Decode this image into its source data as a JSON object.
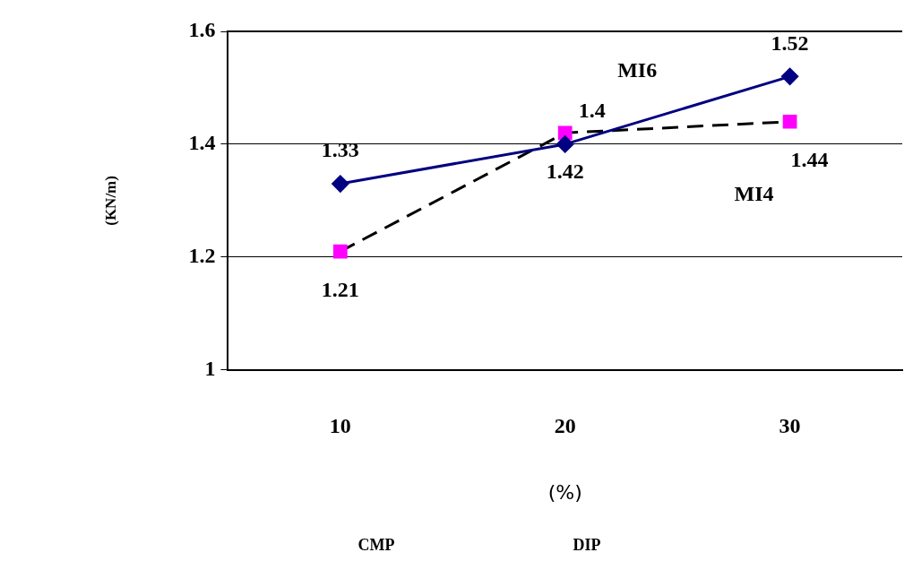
{
  "chart_data": {
    "type": "line",
    "ylabel": "(KN/m)",
    "xlabel": "(%)",
    "categories": [
      "10",
      "20",
      "30"
    ],
    "series": [
      {
        "name": "MI6",
        "color": "#000080",
        "values": [
          1.33,
          1.4,
          1.52
        ],
        "marker": "diamond",
        "line_style": "solid"
      },
      {
        "name": "MI4",
        "color": "#ff00ff",
        "values": [
          1.21,
          1.42,
          1.44
        ],
        "marker": "square",
        "line_style": "dashed"
      }
    ],
    "ylim": [
      1,
      1.6
    ],
    "yticks": [
      1,
      1.2,
      1.4,
      1.6
    ],
    "grid": "y",
    "legend": false,
    "data_labels": true,
    "annotations": [
      "CMP",
      "DIP"
    ]
  }
}
